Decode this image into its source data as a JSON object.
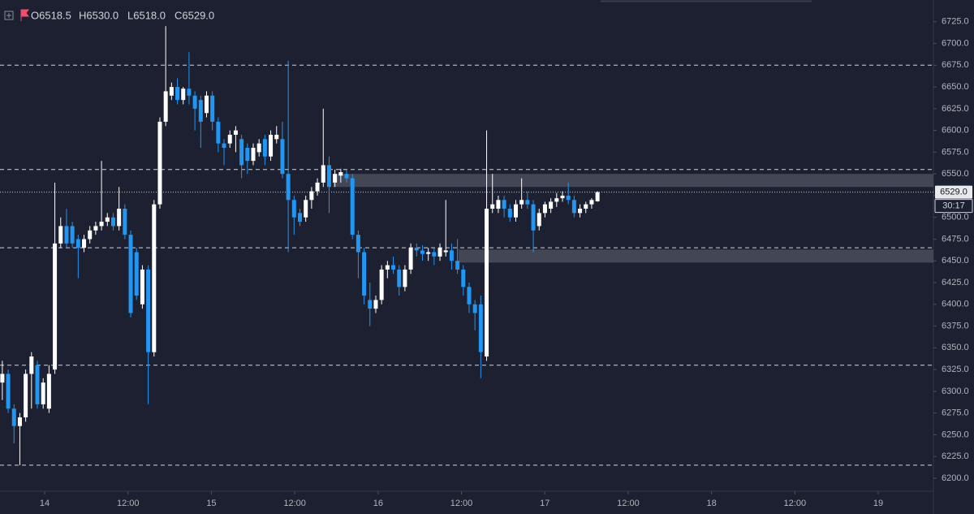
{
  "chart_data": {
    "type": "candlestick",
    "header": {
      "open": "O6518.5",
      "high": "H6530.0",
      "low": "L6518.0",
      "close": "C6529.0"
    },
    "up_color": "#ffffff",
    "down_color": "#2196f3",
    "x": [
      13.746,
      13.781,
      13.816,
      13.851,
      13.886,
      13.921,
      13.956,
      13.991,
      14.026,
      14.061,
      14.096,
      14.131,
      14.166,
      14.201,
      14.236,
      14.271,
      14.306,
      14.341,
      14.376,
      14.411,
      14.446,
      14.481,
      14.516,
      14.551,
      14.586,
      14.621,
      14.656,
      14.691,
      14.726,
      14.761,
      14.796,
      14.831,
      14.866,
      14.901,
      14.936,
      14.971,
      15.006,
      15.041,
      15.076,
      15.111,
      15.146,
      15.181,
      15.216,
      15.251,
      15.286,
      15.321,
      15.356,
      15.391,
      15.426,
      15.461,
      15.496,
      15.531,
      15.566,
      15.601,
      15.636,
      15.671,
      15.706,
      15.741,
      15.776,
      15.811,
      15.846,
      15.881,
      15.916,
      15.951,
      15.986,
      16.021,
      16.056,
      16.091,
      16.126,
      16.161,
      16.196,
      16.231,
      16.266,
      16.301,
      16.336,
      16.371,
      16.406,
      16.441,
      16.476,
      16.511,
      16.546,
      16.581,
      16.616,
      16.651,
      16.686,
      16.721,
      16.756,
      16.791,
      16.826,
      16.861,
      16.896,
      16.931,
      16.966,
      17.001,
      17.036,
      17.071,
      17.106,
      17.141,
      17.176,
      17.211,
      17.246,
      17.281,
      17.316
    ],
    "open": [
      6310,
      6320,
      6280,
      6260,
      6270,
      6320,
      6330,
      6285,
      6280,
      6325,
      6470,
      6490,
      6490,
      6475,
      6465,
      6475,
      6485,
      6490,
      6495,
      6500,
      6490,
      6510,
      6480,
      6460,
      6400,
      6440,
      6345,
      6515,
      6610,
      6640,
      6650,
      6635,
      6648,
      6640,
      6635,
      6620,
      6640,
      6610,
      6585,
      6585,
      6595,
      6590,
      6580,
      6565,
      6575,
      6590,
      6570,
      6590,
      6590,
      6550,
      6520,
      6505,
      6500,
      6520,
      6530,
      6540,
      6560,
      6540,
      6548,
      6550,
      6545,
      6480,
      6460,
      6405,
      6395,
      6405,
      6440,
      6445,
      6440,
      6420,
      6440,
      6465,
      6462,
      6458,
      6460,
      6455,
      6460,
      6462,
      6450,
      6440,
      6420,
      6400,
      6400,
      6340,
      6510,
      6510,
      6520,
      6510,
      6500,
      6515,
      6520,
      6515,
      6490,
      6505,
      6510,
      6518,
      6522,
      6525,
      6520,
      6505,
      6510,
      6515,
      6518.5
    ],
    "high": [
      6335,
      6325,
      6285,
      6275,
      6325,
      6345,
      6335,
      6315,
      6330,
      6540,
      6500,
      6510,
      6495,
      6480,
      6480,
      6490,
      6495,
      6565,
      6505,
      6505,
      6535,
      6515,
      6485,
      6465,
      6445,
      6445,
      6520,
      6615,
      6720,
      6655,
      6660,
      6650,
      6690,
      6645,
      6640,
      6645,
      6645,
      6615,
      6590,
      6600,
      6605,
      6595,
      6585,
      6585,
      6590,
      6595,
      6600,
      6605,
      6610,
      6680,
      6525,
      6510,
      6525,
      6535,
      6545,
      6625,
      6570,
      6555,
      6556,
      6555,
      6550,
      6485,
      6465,
      6425,
      6410,
      6445,
      6450,
      6455,
      6445,
      6445,
      6470,
      6470,
      6468,
      6465,
      6465,
      6470,
      6520,
      6470,
      6475,
      6445,
      6425,
      6405,
      6410,
      6600,
      6550,
      6525,
      6525,
      6515,
      6520,
      6545,
      6530,
      6520,
      6510,
      6518,
      6522,
      6528,
      6530,
      6540,
      6525,
      6515,
      6518,
      6522,
      6530
    ],
    "low": [
      6290,
      6275,
      6240,
      6215,
      6265,
      6280,
      6280,
      6280,
      6275,
      6320,
      6465,
      6465,
      6465,
      6430,
      6460,
      6470,
      6480,
      6485,
      6490,
      6485,
      6485,
      6475,
      6385,
      6405,
      6395,
      6285,
      6340,
      6510,
      6605,
      6635,
      6630,
      6630,
      6630,
      6600,
      6580,
      6615,
      6600,
      6575,
      6560,
      6580,
      6575,
      6545,
      6550,
      6560,
      6570,
      6560,
      6565,
      6585,
      6545,
      6460,
      6480,
      6490,
      6495,
      6510,
      6525,
      6535,
      6505,
      6535,
      6540,
      6540,
      6475,
      6430,
      6400,
      6375,
      6390,
      6400,
      6430,
      6435,
      6410,
      6415,
      6435,
      6455,
      6450,
      6450,
      6445,
      6450,
      6455,
      6440,
      6435,
      6410,
      6390,
      6370,
      6315,
      6335,
      6505,
      6505,
      6500,
      6495,
      6495,
      6510,
      6510,
      6460,
      6485,
      6500,
      6505,
      6512,
      6518,
      6515,
      6500,
      6500,
      6505,
      6510,
      6518
    ],
    "close": [
      6320,
      6280,
      6260,
      6270,
      6320,
      6340,
      6285,
      6310,
      6320,
      6470,
      6490,
      6470,
      6470,
      6465,
      6475,
      6485,
      6490,
      6495,
      6500,
      6490,
      6510,
      6480,
      6390,
      6410,
      6440,
      6345,
      6515,
      6610,
      6645,
      6650,
      6635,
      6648,
      6640,
      6625,
      6610,
      6640,
      6610,
      6585,
      6580,
      6595,
      6600,
      6560,
      6565,
      6580,
      6585,
      6570,
      6595,
      6595,
      6550,
      6520,
      6500,
      6495,
      6520,
      6530,
      6540,
      6560,
      6535,
      6550,
      6552,
      6545,
      6480,
      6460,
      6410,
      6395,
      6405,
      6440,
      6445,
      6440,
      6420,
      6440,
      6465,
      6462,
      6458,
      6460,
      6455,
      6465,
      6462,
      6450,
      6440,
      6420,
      6400,
      6390,
      6345,
      6510,
      6515,
      6520,
      6510,
      6500,
      6515,
      6520,
      6515,
      6485,
      6505,
      6515,
      6518,
      6522,
      6525,
      6520,
      6505,
      6510,
      6515,
      6520,
      6529
    ],
    "levels": [
      6675,
      6555,
      6465,
      6330,
      6215
    ],
    "zones": [
      {
        "x_from": 15.728,
        "low": 6535,
        "high": 6550
      },
      {
        "x_from": 16.483,
        "low": 6448,
        "high": 6463
      }
    ],
    "last_price": {
      "value": 6529,
      "label": "6529.0"
    },
    "countdown": "30:17",
    "xlim": [
      13.732,
      19.331
    ],
    "xticks": [
      14,
      {
        "value": 14.5,
        "label": "12:00"
      },
      15,
      {
        "value": 15.5,
        "label": "12:00"
      },
      16,
      {
        "value": 16.5,
        "label": "12:00"
      },
      17,
      {
        "value": 17.5,
        "label": "12:00"
      },
      18,
      {
        "value": 18.5,
        "label": "12:00"
      },
      19
    ],
    "ylim": [
      6185,
      6750
    ],
    "yticks": [
      {
        "value": 6200,
        "label": "6200.0"
      },
      {
        "value": 6225,
        "label": "6225.0"
      },
      {
        "value": 6250,
        "label": "6250.0"
      },
      {
        "value": 6275,
        "label": "6275.0"
      },
      {
        "value": 6300,
        "label": "6300.0"
      },
      {
        "value": 6325,
        "label": "6325.0"
      },
      {
        "value": 6350,
        "label": "6350.0"
      },
      {
        "value": 6375,
        "label": "6375.0"
      },
      {
        "value": 6400,
        "label": "6400.0"
      },
      {
        "value": 6425,
        "label": "6425.0"
      },
      {
        "value": 6450,
        "label": "6450.0"
      },
      {
        "value": 6475,
        "label": "6475.0"
      },
      {
        "value": 6500,
        "label": "6500.0"
      },
      {
        "value": 6525,
        "label": "6525.0"
      },
      {
        "value": 6550,
        "label": "6550.0"
      },
      {
        "value": 6575,
        "label": "6575.0"
      },
      {
        "value": 6600,
        "label": "6600.0"
      },
      {
        "value": 6625,
        "label": "6625.0"
      },
      {
        "value": 6650,
        "label": "6650.0"
      },
      {
        "value": 6675,
        "label": "6675.0"
      },
      {
        "value": 6700,
        "label": "6700.0"
      },
      {
        "value": 6725,
        "label": "6725.0"
      }
    ]
  }
}
